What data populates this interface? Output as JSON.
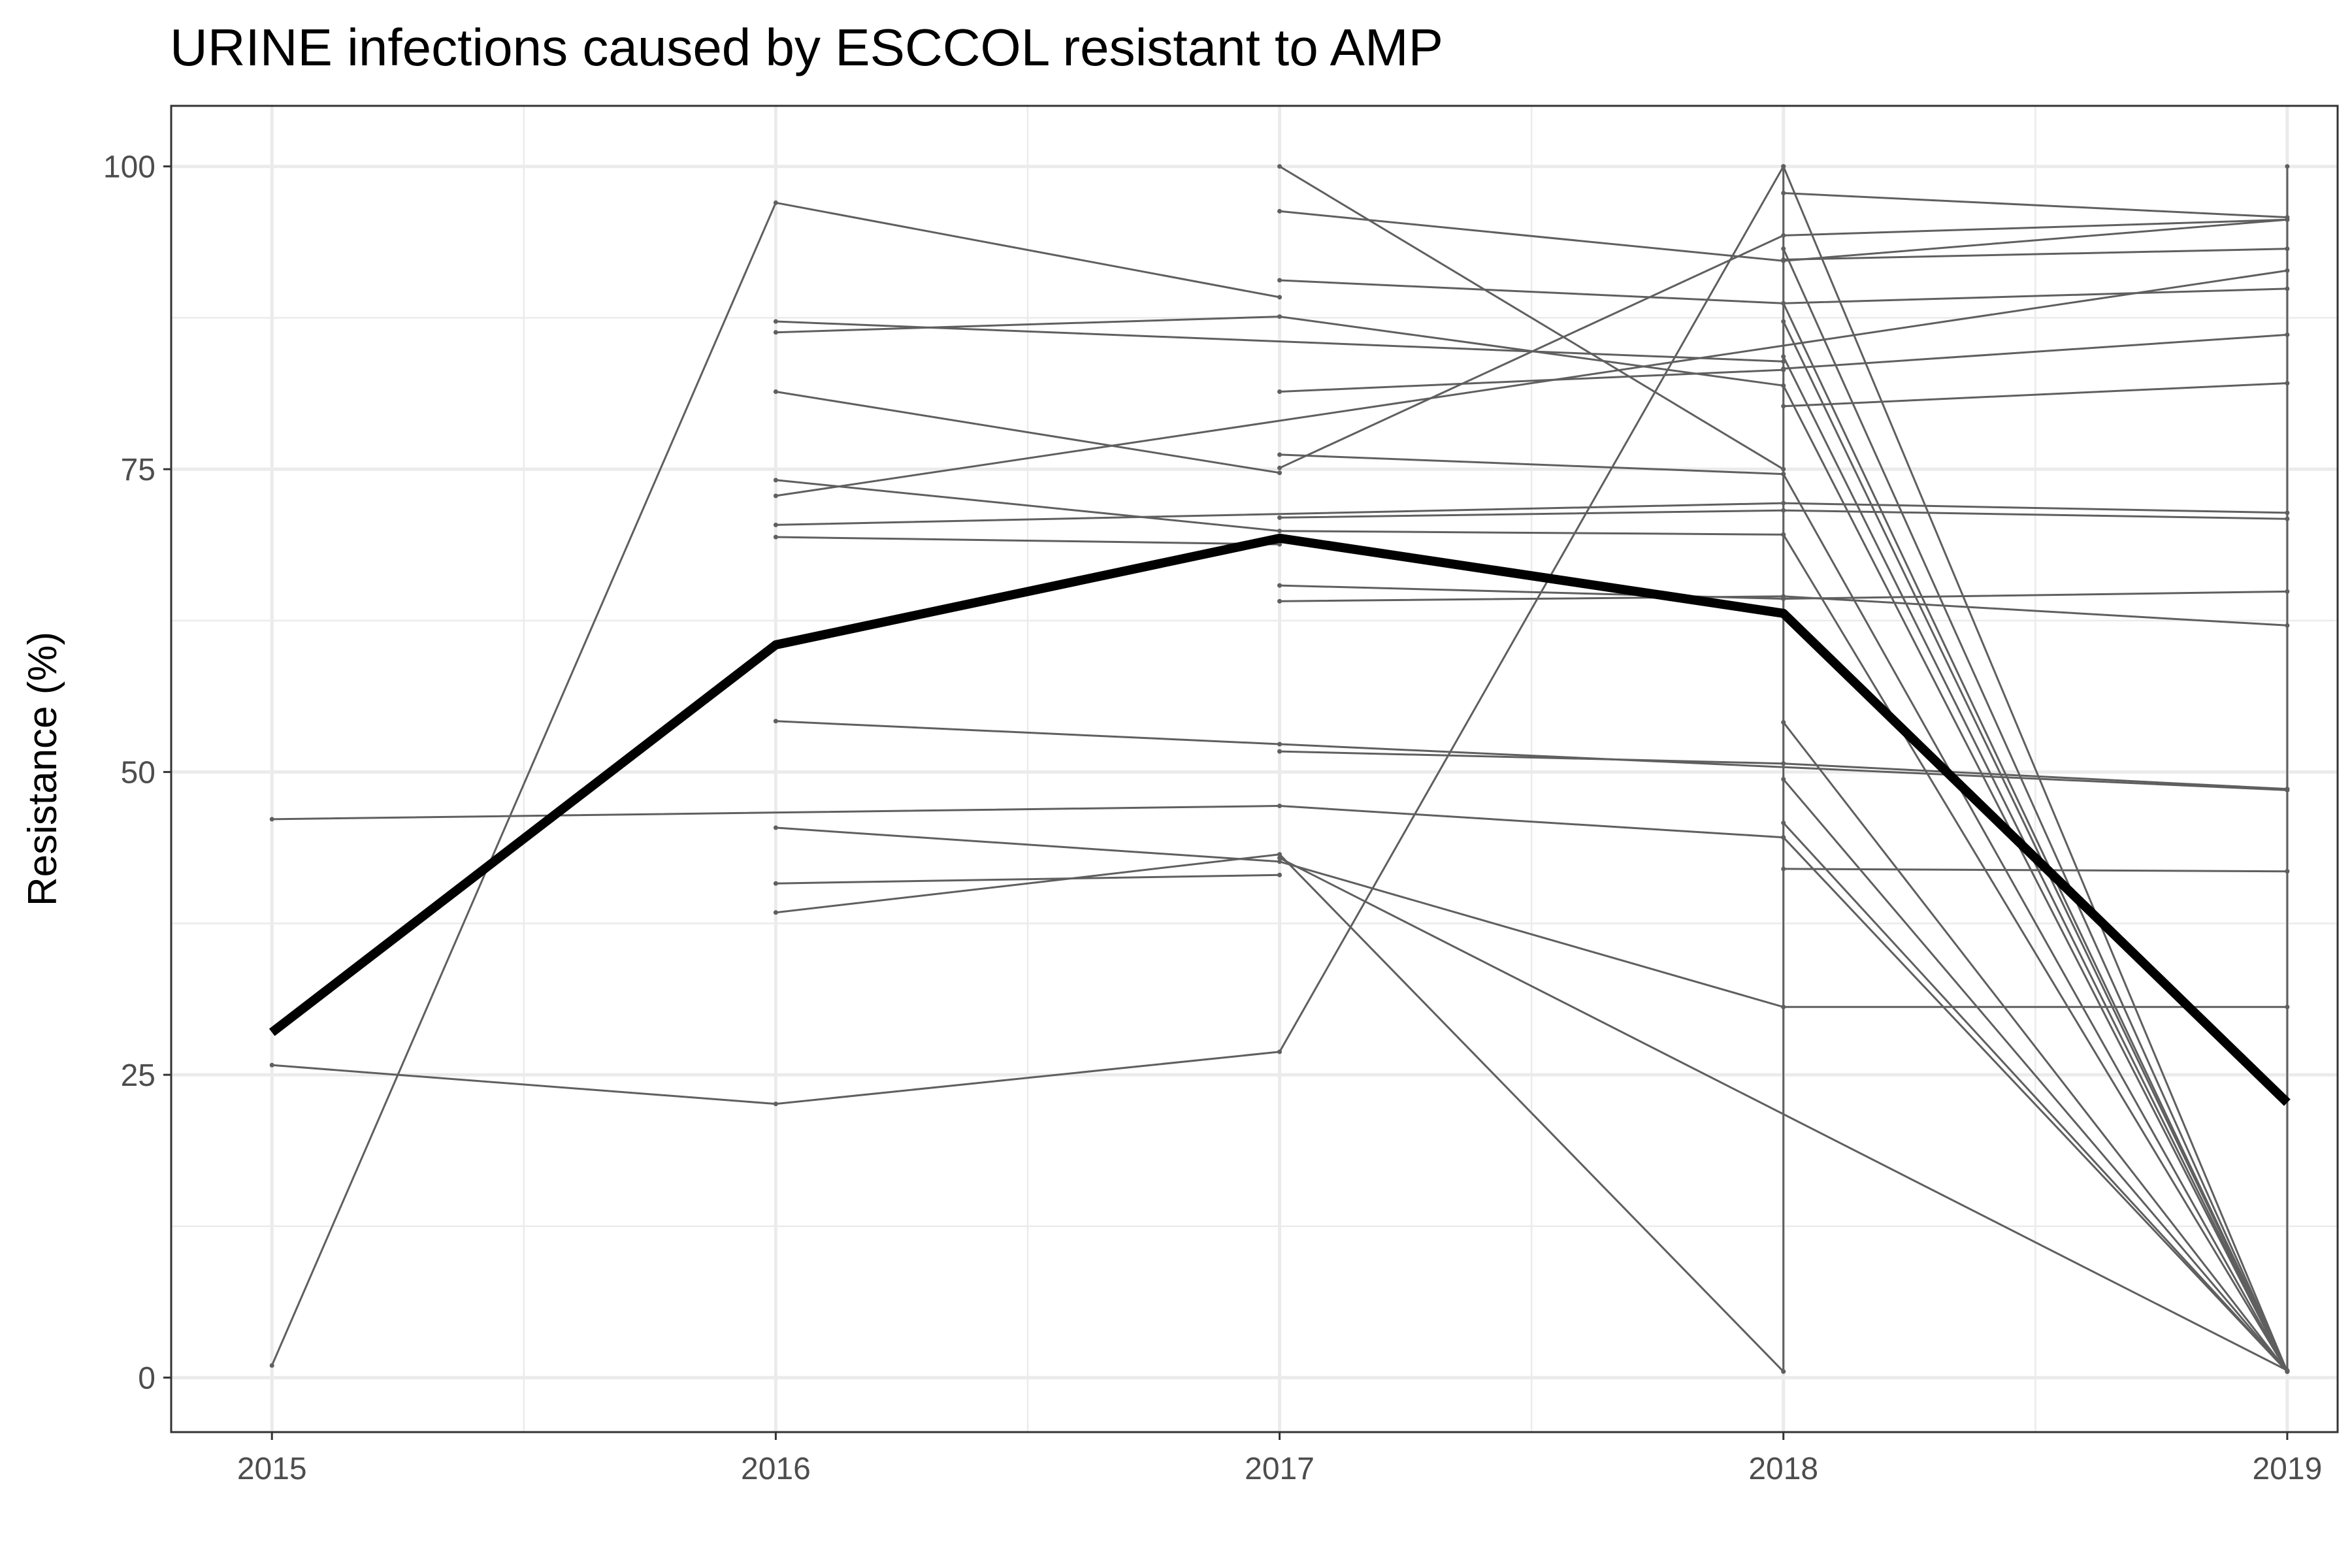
{
  "chart_data": {
    "type": "line",
    "title": "URINE infections caused by ESCCOL resistant to AMP",
    "xlabel": "",
    "ylabel": "Resistance (%)",
    "x": [
      2015,
      2016,
      2017,
      2018,
      2019
    ],
    "x_tick_labels": [
      "2015",
      "2016",
      "2017",
      "2018",
      "2019"
    ],
    "y_ticks": [
      0,
      25,
      50,
      75,
      100
    ],
    "y_tick_labels": [
      "0",
      "25",
      "50",
      "75",
      "100"
    ],
    "xlim": [
      2014.8,
      2019.1
    ],
    "ylim": [
      -4.5,
      105
    ],
    "grid": true,
    "legend": "none",
    "colors": {
      "site_lines": "#5f5f5f",
      "mean_line": "#000000",
      "grid": "#ebebeb",
      "border": "#333333"
    },
    "mean_series": {
      "x": [
        2015,
        2016,
        2017,
        2018,
        2019
      ],
      "y": [
        28.5,
        60.5,
        69.3,
        63.1,
        22.7
      ]
    },
    "series": [
      {
        "x": [
          2015,
          2016,
          2017
        ],
        "y": [
          1,
          97,
          89.2
        ]
      },
      {
        "x": [
          2015,
          2017,
          2018
        ],
        "y": [
          46.1,
          47.2,
          44.6
        ]
      },
      {
        "x": [
          2015,
          2016,
          2017,
          2018
        ],
        "y": [
          25.8,
          22.6,
          26.9,
          100
        ]
      },
      {
        "x": [
          2016,
          2018
        ],
        "y": [
          87.2,
          83.9
        ]
      },
      {
        "x": [
          2016,
          2017,
          2018
        ],
        "y": [
          86.3,
          87.6,
          81.9
        ]
      },
      {
        "x": [
          2016,
          2019
        ],
        "y": [
          72.8,
          91.4
        ]
      },
      {
        "x": [
          2016,
          2017
        ],
        "y": [
          81.4,
          74.7
        ]
      },
      {
        "x": [
          2016,
          2017,
          2018
        ],
        "y": [
          74.1,
          69.9,
          69.6
        ]
      },
      {
        "x": [
          2016,
          2018,
          2019
        ],
        "y": [
          70.4,
          72.2,
          71.4
        ]
      },
      {
        "x": [
          2016,
          2017
        ],
        "y": [
          69.4,
          68.8
        ]
      },
      {
        "x": [
          2016,
          2017,
          2019
        ],
        "y": [
          54.2,
          52.3,
          48.5
        ]
      },
      {
        "x": [
          2016,
          2017,
          2018
        ],
        "y": [
          45.4,
          42.6,
          30.6
        ]
      },
      {
        "x": [
          2016,
          2017
        ],
        "y": [
          40.8,
          41.5
        ]
      },
      {
        "x": [
          2016,
          2017,
          2018
        ],
        "y": [
          38.4,
          43.2,
          0.5
        ]
      },
      {
        "x": [
          2017,
          2018
        ],
        "y": [
          100,
          75
        ]
      },
      {
        "x": [
          2017,
          2018,
          2019
        ],
        "y": [
          96.3,
          92.2,
          95.6
        ]
      },
      {
        "x": [
          2017,
          2018,
          2019
        ],
        "y": [
          90.6,
          88.7,
          89.9
        ]
      },
      {
        "x": [
          2017,
          2018
        ],
        "y": [
          81.4,
          83.2
        ]
      },
      {
        "x": [
          2017,
          2018
        ],
        "y": [
          76.2,
          74.6
        ]
      },
      {
        "x": [
          2017,
          2018,
          2019
        ],
        "y": [
          71,
          71.6,
          70.9
        ]
      },
      {
        "x": [
          2017,
          2018,
          2019
        ],
        "y": [
          65.4,
          64.3,
          64.9
        ]
      },
      {
        "x": [
          2017,
          2018,
          2019
        ],
        "y": [
          64.1,
          64.5,
          62.1
        ]
      },
      {
        "x": [
          2017,
          2018,
          2019
        ],
        "y": [
          51.7,
          50.7,
          48.6
        ]
      },
      {
        "x": [
          2017,
          2019
        ],
        "y": [
          42.9,
          0.6
        ]
      },
      {
        "x": [
          2017,
          2018,
          2019
        ],
        "y": [
          75.1,
          94.3,
          95.6
        ]
      },
      {
        "x": [
          2018,
          2019
        ],
        "y": [
          97.8,
          95.8
        ]
      },
      {
        "x": [
          2018,
          2019
        ],
        "y": [
          92.3,
          93.2
        ]
      },
      {
        "x": [
          2018,
          2019
        ],
        "y": [
          80.2,
          82.1
        ]
      },
      {
        "x": [
          2018,
          2019
        ],
        "y": [
          83.3,
          86.1
        ]
      },
      {
        "x": [
          2018,
          2019
        ],
        "y": [
          42,
          41.8
        ]
      },
      {
        "x": [
          2018,
          2019
        ],
        "y": [
          30.6,
          30.6
        ]
      },
      {
        "x": [
          2018,
          2019
        ],
        "y": [
          100,
          0.5
        ]
      },
      {
        "x": [
          2018,
          2019
        ],
        "y": [
          93.2,
          0.5
        ]
      },
      {
        "x": [
          2018,
          2019
        ],
        "y": [
          88.7,
          0.5
        ]
      },
      {
        "x": [
          2018,
          2019
        ],
        "y": [
          87.2,
          0.5
        ]
      },
      {
        "x": [
          2018,
          2019
        ],
        "y": [
          84.3,
          0.5
        ]
      },
      {
        "x": [
          2018,
          2019
        ],
        "y": [
          81.9,
          0.5
        ]
      },
      {
        "x": [
          2018,
          2019
        ],
        "y": [
          74.6,
          0.5
        ]
      },
      {
        "x": [
          2018,
          2019
        ],
        "y": [
          69.6,
          0.5
        ]
      },
      {
        "x": [
          2018,
          2019
        ],
        "y": [
          54.1,
          0.5
        ]
      },
      {
        "x": [
          2018,
          2019
        ],
        "y": [
          49.4,
          0.5
        ]
      },
      {
        "x": [
          2018,
          2019
        ],
        "y": [
          45.8,
          0.5
        ]
      },
      {
        "x": [
          2018,
          2019
        ],
        "y": [
          44.6,
          0.5
        ]
      },
      {
        "x": [
          2018,
          2018
        ],
        "y": [
          0.5,
          100
        ]
      },
      {
        "x": [
          2019,
          2019
        ],
        "y": [
          0.5,
          100
        ]
      }
    ]
  }
}
